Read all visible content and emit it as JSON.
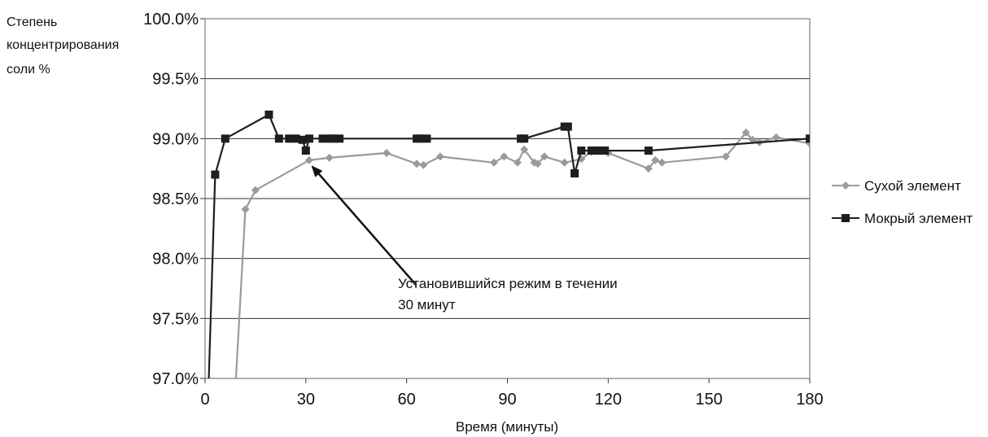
{
  "chart_data": {
    "type": "line",
    "title": "",
    "xlabel": "Время (минуты)",
    "ylabel_lines": [
      "Степень",
      "концентрирования",
      "соли %"
    ],
    "xlim": [
      0,
      180
    ],
    "ylim": [
      97.0,
      100.0
    ],
    "x_ticks": [
      {
        "value": 0,
        "label": "0"
      },
      {
        "value": 30,
        "label": "30"
      },
      {
        "value": 60,
        "label": "60"
      },
      {
        "value": 90,
        "label": "90"
      },
      {
        "value": 120,
        "label": "120"
      },
      {
        "value": 150,
        "label": "150"
      },
      {
        "value": 180,
        "label": "180"
      }
    ],
    "y_ticks": [
      {
        "value": 97.0,
        "label": "97.0%"
      },
      {
        "value": 97.5,
        "label": "97.5%"
      },
      {
        "value": 98.0,
        "label": "98.0%"
      },
      {
        "value": 98.5,
        "label": "98.5%"
      },
      {
        "value": 99.0,
        "label": "99.0%"
      },
      {
        "value": 99.5,
        "label": "99.5%"
      },
      {
        "value": 100.0,
        "label": "100.0%"
      }
    ],
    "grid": "horizontal",
    "legend_position": "right",
    "series": [
      {
        "name": "Сухой элемент",
        "color": "#9a9a9a",
        "marker": "diamond",
        "points": [
          [
            9,
            96.9
          ],
          [
            12,
            98.41
          ],
          [
            15,
            98.57
          ],
          [
            31,
            98.82
          ],
          [
            37,
            98.84
          ],
          [
            54,
            98.88
          ],
          [
            63,
            98.79
          ],
          [
            65,
            98.78
          ],
          [
            70,
            98.85
          ],
          [
            86,
            98.8
          ],
          [
            89,
            98.85
          ],
          [
            93,
            98.8
          ],
          [
            95,
            98.91
          ],
          [
            98,
            98.8
          ],
          [
            99,
            98.79
          ],
          [
            101,
            98.85
          ],
          [
            107,
            98.8
          ],
          [
            112,
            98.83
          ],
          [
            115,
            98.89
          ],
          [
            120,
            98.88
          ],
          [
            132,
            98.75
          ],
          [
            134,
            98.82
          ],
          [
            136,
            98.8
          ],
          [
            155,
            98.85
          ],
          [
            161,
            99.05
          ],
          [
            163,
            98.99
          ],
          [
            165,
            98.97
          ],
          [
            170,
            99.01
          ],
          [
            180,
            98.96
          ]
        ]
      },
      {
        "name": "Мокрый элемент",
        "color": "#1e1e1e",
        "marker": "square",
        "points": [
          [
            1,
            96.9
          ],
          [
            3,
            98.7
          ],
          [
            6,
            99.0
          ],
          [
            19,
            99.2
          ],
          [
            22,
            99.0
          ],
          [
            25,
            99.0
          ],
          [
            27,
            99.0
          ],
          [
            29,
            98.99
          ],
          [
            30,
            98.9
          ],
          [
            31,
            99.0
          ],
          [
            35,
            99.0
          ],
          [
            37,
            99.0
          ],
          [
            38,
            99.0
          ],
          [
            40,
            99.0
          ],
          [
            63,
            99.0
          ],
          [
            64,
            99.0
          ],
          [
            66,
            99.0
          ],
          [
            94,
            99.0
          ],
          [
            95,
            99.0
          ],
          [
            107,
            99.1
          ],
          [
            108,
            99.1
          ],
          [
            110,
            98.71
          ],
          [
            112,
            98.9
          ],
          [
            115,
            98.9
          ],
          [
            117,
            98.9
          ],
          [
            118,
            98.9
          ],
          [
            119,
            98.9
          ],
          [
            132,
            98.9
          ],
          [
            180,
            99.0
          ]
        ]
      }
    ],
    "annotations": [
      {
        "text_lines": [
          "Установившийся режим в течении",
          "30 минут"
        ],
        "arrow_to": [
          31,
          98.82
        ],
        "arrow_from": [
          58,
          97.9
        ]
      }
    ]
  }
}
